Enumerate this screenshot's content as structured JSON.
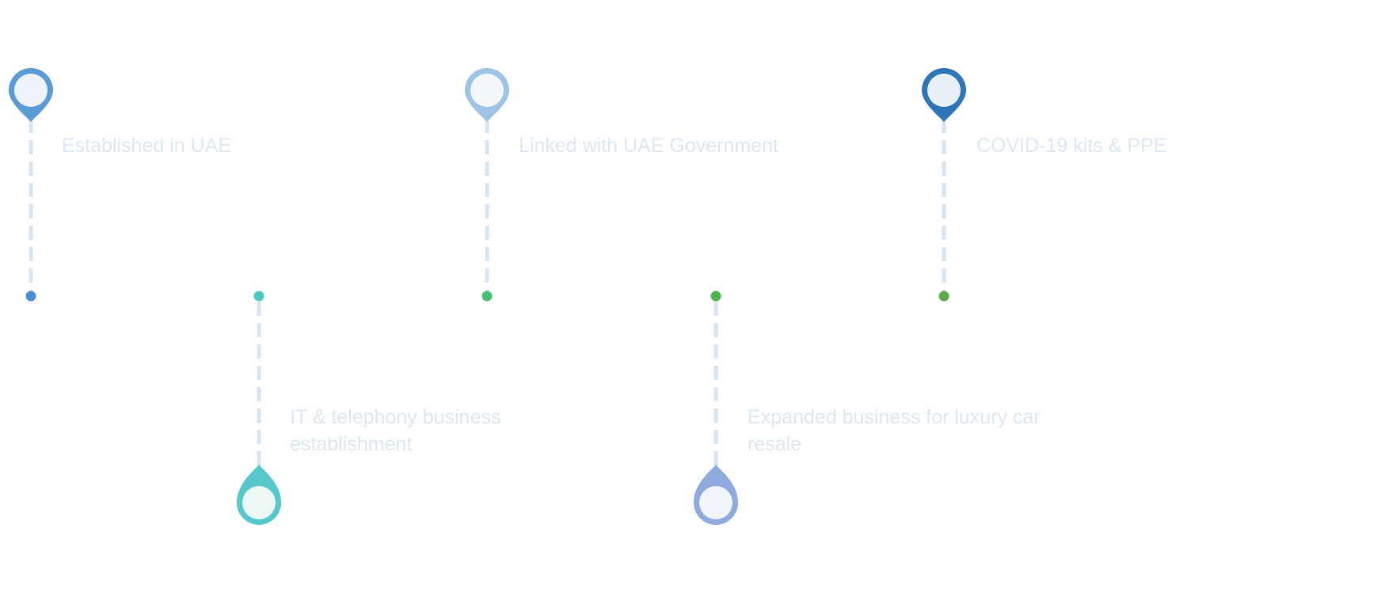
{
  "milestones": [
    {
      "label": "Established in UAE",
      "pin_color": "#5b9bd5",
      "dot_color": "#4a8fd1",
      "position": "top"
    },
    {
      "label": "IT & telephony business establishment",
      "pin_color": "#56c7cb",
      "dot_color": "#4fc6c2",
      "position": "bottom"
    },
    {
      "label": "Linked with UAE Government",
      "pin_color": "#9dc3e6",
      "dot_color": "#45bf72",
      "position": "top"
    },
    {
      "label": "Expanded business for luxury car resale",
      "pin_color": "#8faadc",
      "dot_color": "#4cb550",
      "position": "bottom"
    },
    {
      "label": "COVID-19 kits & PPE",
      "pin_color": "#2e75b6",
      "dot_color": "#5da945",
      "position": "top"
    }
  ],
  "colors": {
    "connector": "#d9e3f1",
    "label_text": "#dde7f3"
  }
}
